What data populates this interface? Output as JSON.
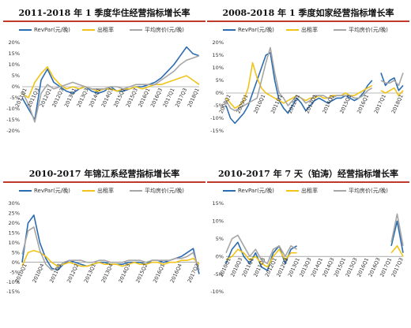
{
  "chart_data": [
    {
      "type": "line",
      "title": "2011-2018 年 1 季度华住经营指标增长率",
      "legend": [
        "RevPar(元/晚)",
        "出租率",
        "平均房价(元/晚)"
      ],
      "legend_placement": "top",
      "y_tick_labels": [
        "20%",
        "15%",
        "10%",
        "5%",
        "0%",
        "-5%",
        "-10%",
        "-15%",
        "-20%"
      ],
      "ylim": [
        -20,
        20
      ],
      "x_tick_labels": [
        "2011Q1",
        "2011Q3",
        "2012Q1",
        "2012Q3",
        "2013Q1",
        "2013Q3",
        "2014Q1",
        "2014Q3",
        "2015Q1",
        "2015Q3",
        "2016Q1",
        "2016Q3",
        "2017Q1",
        "2017Q3",
        "2018Q1"
      ],
      "n_points": 29,
      "grid": false,
      "series": [
        {
          "name": "RevPar(元/晚)",
          "color": "#2b6cb0",
          "values": [
            -5,
            -10,
            -15,
            3,
            8,
            2,
            0,
            -2,
            -3,
            -1,
            0,
            -2,
            -3,
            -2,
            0,
            -2,
            -2,
            -1,
            0,
            0,
            1,
            2,
            4,
            7,
            10,
            14,
            18,
            15,
            14
          ]
        },
        {
          "name": "出租率",
          "color": "#f0c419",
          "values": [
            -3,
            -5,
            2,
            6,
            9,
            4,
            1,
            -1,
            0,
            -1,
            0,
            -1,
            -2,
            -1,
            -1,
            -2,
            -1,
            -1,
            0,
            -1,
            0,
            1,
            1,
            2,
            3,
            4,
            5,
            3,
            1
          ]
        },
        {
          "name": "平均房价(元/晚)",
          "color": "#a6a6a6",
          "values": [
            -2,
            -8,
            -16,
            -3,
            1,
            -1,
            0,
            1,
            2,
            1,
            0,
            -1,
            -1,
            -1,
            0,
            0,
            -1,
            0,
            1,
            1,
            1,
            1,
            3,
            5,
            7,
            10,
            12,
            13,
            14
          ]
        }
      ]
    },
    {
      "type": "line",
      "title": "2008-2018 年 1 季度如家经营指标增长率",
      "legend": [
        "RevPar(元/晚)",
        "出租率",
        "平均房价(元/晚)"
      ],
      "legend_placement": "top",
      "y_tick_labels": [
        "20%",
        "15%",
        "10%",
        "5%",
        "0%",
        "-5%",
        "-10%",
        "-15%"
      ],
      "ylim": [
        -15,
        20
      ],
      "x_tick_labels": [
        "2008Q1",
        "2009Q1",
        "2010Q1",
        "2011Q1",
        "2012Q1",
        "2013Q1",
        "2014Q1",
        "2015Q1",
        "2016Q1",
        "2017Q1",
        "2018Q1"
      ],
      "n_points": 41,
      "grid": false,
      "series": [
        {
          "name": "RevPar(元/晚)",
          "color": "#2b6cb0",
          "values": [
            -5,
            -10,
            -12,
            -10,
            -8,
            -5,
            0,
            5,
            10,
            15,
            16,
            5,
            -3,
            -6,
            -8,
            -5,
            -2,
            -4,
            -7,
            -5,
            -3,
            -2,
            -3,
            -4,
            -3,
            -2,
            -2,
            -1,
            -2,
            -3,
            -2,
            0,
            3,
            5,
            null,
            8,
            3,
            5,
            6,
            1,
            3
          ]
        },
        {
          "name": "出租率",
          "color": "#f0c419",
          "values": [
            -2,
            -4,
            -6,
            -5,
            -3,
            2,
            12,
            6,
            2,
            0,
            -1,
            -2,
            -3,
            -4,
            -3,
            -2,
            -1,
            -2,
            -3,
            -2,
            -2,
            -1,
            -2,
            -2,
            -1,
            -1,
            -1,
            0,
            -1,
            -1,
            0,
            1,
            2,
            3,
            null,
            1,
            0,
            1,
            2,
            -1,
            1
          ]
        },
        {
          "name": "平均房价(元/晚)",
          "color": "#a6a6a6",
          "values": [
            -3,
            -6,
            -7,
            -6,
            -5,
            -4,
            -3,
            -2,
            5,
            12,
            18,
            8,
            0,
            -2,
            -5,
            -3,
            -1,
            -2,
            -4,
            -3,
            -1,
            -1,
            -1,
            -2,
            -2,
            -1,
            -1,
            -1,
            -1,
            -2,
            -2,
            -1,
            1,
            2,
            null,
            5,
            4,
            4,
            5,
            3,
            8
          ]
        }
      ]
    },
    {
      "type": "line",
      "title": "2010-2017 年锦江系经营指标增长率",
      "legend": [
        "RevPar(元/晚)",
        "出租率",
        "平均房价(元/晚)"
      ],
      "legend_placement": "top",
      "y_tick_labels": [
        "30%",
        "25%",
        "20%",
        "15%",
        "10%",
        "5%",
        "0%",
        "-5%",
        "-10%",
        "-15%"
      ],
      "ylim": [
        -15,
        30
      ],
      "x_tick_labels": [
        "2010Q1",
        "2010Q4",
        "2011Q3",
        "2012Q2",
        "2013Q1",
        "2013Q4",
        "2014Q3",
        "2015Q2",
        "2016Q1",
        "2016Q4",
        "2017Q3"
      ],
      "n_points": 31,
      "grid": false,
      "series": [
        {
          "name": "RevPar(元/晚)",
          "color": "#2b6cb0",
          "values": [
            0,
            20,
            24,
            10,
            2,
            -3,
            -4,
            -1,
            1,
            0,
            -1,
            -2,
            -1,
            0,
            0,
            -1,
            -1,
            -1,
            0,
            0,
            0,
            -1,
            1,
            1,
            0,
            1,
            2,
            3,
            5,
            7,
            -6
          ]
        },
        {
          "name": "出租率",
          "color": "#f0c419",
          "values": [
            -2,
            5,
            6,
            5,
            3,
            0,
            -2,
            -1,
            0,
            -1,
            -2,
            -2,
            -1,
            0,
            -1,
            -1,
            -1,
            -2,
            -1,
            0,
            -1,
            -1,
            0,
            0,
            -1,
            0,
            0,
            1,
            1,
            2,
            -1
          ]
        },
        {
          "name": "平均房价(元/晚)",
          "color": "#a6a6a6",
          "values": [
            4,
            16,
            18,
            6,
            -1,
            -4,
            -3,
            0,
            1,
            1,
            1,
            0,
            0,
            1,
            1,
            0,
            0,
            0,
            1,
            1,
            1,
            0,
            1,
            1,
            1,
            1,
            2,
            2,
            3,
            5,
            -4
          ]
        }
      ]
    },
    {
      "type": "line",
      "title": "2010-2017 年 7 天（铂涛）经营指标增长率",
      "legend": [
        "RevPar(元/晚)",
        "出租率",
        "平均房价(元/晚)"
      ],
      "legend_placement": "top",
      "y_tick_labels": [
        "15%",
        "10%",
        "5%",
        "0%",
        "-5%",
        "-10%"
      ],
      "ylim": [
        -10,
        15
      ],
      "x_tick_labels": [
        "2010Q1",
        "2010Q3",
        "2011Q1",
        "2011Q3",
        "2012Q1",
        "2012Q3",
        "2013Q1",
        "2013Q3",
        "2014Q1",
        "2014Q3",
        "2015Q1",
        "2015Q3",
        "2016Q1",
        "2016Q3",
        "2017Q1",
        "2017Q3"
      ],
      "n_points": 31,
      "grid": false,
      "series": [
        {
          "name": "RevPar(元/晚)",
          "color": "#2b6cb0",
          "values": [
            -2,
            2,
            4,
            0,
            -2,
            1,
            -3,
            -4,
            1,
            3,
            -2,
            2,
            3,
            null,
            null,
            null,
            null,
            null,
            null,
            null,
            null,
            null,
            null,
            null,
            null,
            null,
            null,
            null,
            3,
            10,
            1
          ]
        },
        {
          "name": "出租率",
          "color": "#f0c419",
          "values": [
            -1,
            0,
            2,
            1,
            -1,
            0,
            -2,
            -3,
            0,
            2,
            -1,
            1,
            1,
            null,
            null,
            null,
            null,
            null,
            null,
            null,
            null,
            null,
            null,
            null,
            null,
            null,
            null,
            null,
            1,
            3,
            0
          ]
        },
        {
          "name": "平均房价(元/晚)",
          "color": "#a6a6a6",
          "values": [
            1,
            5,
            6,
            3,
            0,
            2,
            -1,
            -2,
            2,
            3,
            0,
            3,
            2,
            null,
            null,
            null,
            null,
            null,
            null,
            null,
            null,
            null,
            null,
            null,
            null,
            null,
            null,
            null,
            4,
            12,
            3
          ]
        }
      ]
    }
  ]
}
